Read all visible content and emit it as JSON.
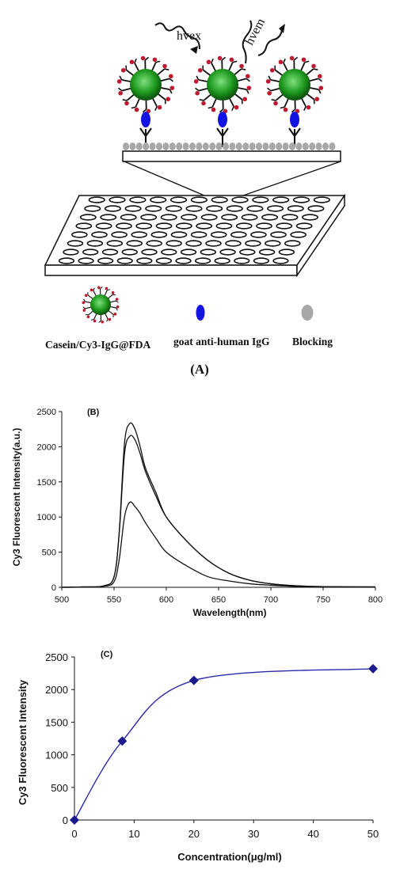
{
  "panel_a": {
    "excitation_label": "hvex",
    "emission_label": "hvem",
    "legend": {
      "nanoparticle": "Casein/Cy3-IgG@FDA",
      "antibody": "goat anti-human IgG",
      "blocking": "Blocking"
    },
    "caption": "(A)",
    "colors": {
      "particle": "#1e9a1e",
      "antibody": "#1414e0",
      "blocking": "#a8a8a8",
      "marker": "#c0182e"
    }
  },
  "chart_data": [
    {
      "type": "line",
      "panel_label": "(B)",
      "xlabel": "Wavelength(nm)",
      "ylabel": "Cy3 Fluorescent Intensity(a.u.)",
      "xlim": [
        500,
        800
      ],
      "ylim": [
        0,
        2500
      ],
      "xticks": [
        500,
        550,
        600,
        650,
        700,
        750,
        800
      ],
      "yticks": [
        0,
        500,
        1000,
        1500,
        2000,
        2500
      ],
      "grid": false,
      "x": [
        500,
        520,
        540,
        550,
        555,
        560,
        565,
        570,
        575,
        580,
        590,
        600,
        620,
        640,
        660,
        680,
        700,
        720,
        750,
        800
      ],
      "series": [
        {
          "values": [
            0,
            5,
            20,
            150,
            800,
            2050,
            2330,
            2250,
            2000,
            1700,
            1350,
            1000,
            650,
            380,
            200,
            100,
            50,
            25,
            10,
            5
          ]
        },
        {
          "values": [
            0,
            5,
            20,
            150,
            780,
            1900,
            2150,
            2100,
            1900,
            1650,
            1300,
            1000,
            650,
            380,
            200,
            100,
            50,
            25,
            10,
            5
          ]
        },
        {
          "values": [
            0,
            5,
            15,
            80,
            400,
            1000,
            1210,
            1150,
            1050,
            920,
            700,
            500,
            300,
            150,
            90,
            50,
            30,
            15,
            5,
            5
          ]
        }
      ]
    },
    {
      "type": "scatter",
      "panel_label": "(C)",
      "xlabel": "Concentration(μg/ml)",
      "ylabel": "Cy3 Fluorescent Intensity",
      "xlim": [
        0,
        50
      ],
      "ylim": [
        0,
        2500
      ],
      "xticks": [
        0,
        10,
        20,
        30,
        40,
        50
      ],
      "yticks": [
        0,
        500,
        1000,
        1500,
        2000,
        2500
      ],
      "grid": false,
      "x": [
        0,
        8,
        20,
        50
      ],
      "values": [
        0,
        1210,
        2140,
        2320
      ],
      "smooth_line": true,
      "marker": "diamond",
      "color": "#1a1a8c"
    }
  ]
}
